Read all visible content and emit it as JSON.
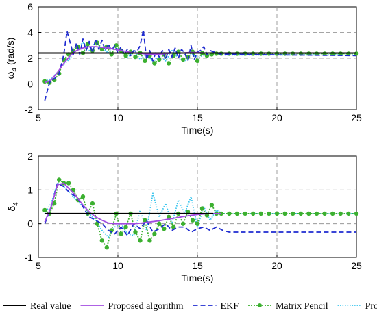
{
  "chart_data": [
    {
      "type": "line",
      "xlabel": "Time(s)",
      "ylabel": "ω4 (rad/s)",
      "ylabel_main": "ω",
      "ylabel_sub": "4",
      "ylabel_unit": " (rad/s)",
      "xlim": [
        5,
        25
      ],
      "ylim": [
        -2,
        6
      ],
      "xticks": [
        "5",
        "10",
        "15",
        "20",
        "25"
      ],
      "yticks": [
        "-2",
        "0",
        "2",
        "4",
        "6"
      ],
      "grid": true,
      "series": [
        {
          "name": "Real value",
          "x": [
            5,
            25
          ],
          "y": [
            2.4,
            2.4
          ]
        },
        {
          "name": "Proposed algorithm",
          "x": [
            5.4,
            5.8,
            6.2,
            6.6,
            7.0,
            7.4,
            7.8,
            8.2,
            8.6,
            9.0,
            9.4,
            9.8,
            10.2,
            10.6,
            11.0,
            11.5,
            12.0,
            12.5,
            13.0,
            13.5,
            14.0,
            14.5,
            15.0,
            15.5,
            16.0,
            16.5
          ],
          "y": [
            0.1,
            0.3,
            0.9,
            1.6,
            2.2,
            2.6,
            2.8,
            2.9,
            2.9,
            2.85,
            2.8,
            2.7,
            2.6,
            2.5,
            2.4,
            2.35,
            2.3,
            2.3,
            2.35,
            2.4,
            2.4,
            2.45,
            2.45,
            2.4,
            2.4,
            2.4
          ]
        },
        {
          "name": "EKF",
          "x": [
            5.4,
            5.7,
            6.0,
            6.3,
            6.6,
            6.8,
            7.0,
            7.2,
            7.4,
            7.6,
            7.8,
            8.0,
            8.2,
            8.4,
            8.6,
            8.8,
            9.0,
            9.2,
            9.4,
            9.6,
            9.8,
            10.0,
            10.2,
            10.4,
            10.6,
            10.8,
            11.0,
            11.2,
            11.4,
            11.6,
            11.8,
            12.0,
            12.2,
            12.4,
            12.6,
            12.8,
            13.0,
            13.2,
            13.4,
            13.6,
            13.8,
            14.0,
            14.2,
            14.4,
            14.6,
            14.8,
            15.0,
            15.2,
            15.4,
            15.6,
            15.8,
            16.0,
            16.5,
            17.0,
            25.0
          ],
          "y": [
            -1.3,
            0.1,
            0.4,
            0.8,
            2.3,
            4.1,
            3.2,
            2.3,
            3.2,
            2.3,
            3.5,
            2.6,
            3.3,
            2.4,
            3.5,
            2.7,
            3.4,
            2.6,
            3.1,
            2.6,
            3.0,
            2.4,
            2.9,
            2.3,
            2.7,
            2.2,
            2.6,
            2.5,
            3.0,
            4.2,
            1.9,
            2.6,
            1.8,
            2.5,
            2.1,
            2.6,
            1.9,
            2.7,
            2.1,
            2.8,
            2.0,
            2.7,
            2.4,
            1.8,
            3.0,
            1.9,
            2.5,
            2.6,
            2.9,
            2.3,
            2.6,
            2.5,
            2.3,
            2.3,
            2.2
          ]
        },
        {
          "name": "Matrix Pencil",
          "x": [
            5.4,
            5.7,
            6.0,
            6.3,
            6.6,
            6.9,
            7.2,
            7.5,
            7.8,
            8.1,
            8.4,
            8.7,
            9.0,
            9.3,
            9.6,
            9.9,
            10.2,
            10.5,
            10.8,
            11.1,
            11.4,
            11.7,
            12.0,
            12.3,
            12.6,
            12.9,
            13.2,
            13.5,
            13.8,
            14.1,
            14.4,
            14.7,
            15.0,
            15.3,
            15.6,
            15.9,
            16.2,
            16.5,
            17.0,
            17.5,
            18.0,
            18.5,
            19.0,
            19.5,
            20.0,
            20.5,
            21.0,
            21.5,
            22.0,
            22.5,
            23.0,
            23.5,
            24.0,
            24.5,
            25.0
          ],
          "y": [
            0.2,
            0.1,
            0.3,
            0.8,
            1.9,
            2.3,
            2.6,
            2.9,
            2.4,
            3.1,
            2.6,
            3.2,
            2.7,
            2.9,
            2.3,
            3.0,
            2.6,
            2.2,
            2.5,
            2.1,
            2.4,
            1.8,
            2.2,
            1.6,
            1.9,
            2.3,
            1.6,
            2.2,
            2.5,
            1.9,
            2.1,
            2.5,
            1.8,
            2.4,
            2.2,
            2.3,
            2.35,
            2.35,
            2.35,
            2.35,
            2.35,
            2.35,
            2.35,
            2.35,
            2.35,
            2.35,
            2.35,
            2.35,
            2.35,
            2.35,
            2.35,
            2.35,
            2.35,
            2.35,
            2.35
          ]
        },
        {
          "name": "Prony",
          "x": [
            5.4,
            5.8,
            6.2,
            6.6,
            7.0,
            7.4,
            7.8,
            8.2,
            8.6,
            9.0,
            9.4,
            9.8,
            10.2,
            10.6,
            11.0,
            11.4,
            11.8,
            12.2,
            12.6,
            13.0,
            13.4,
            13.8,
            14.2,
            14.6,
            15.0,
            15.4,
            15.8,
            16.2,
            16.6,
            17.0,
            25.0
          ],
          "y": [
            0.2,
            0.4,
            0.9,
            1.5,
            2.0,
            2.8,
            3.2,
            2.6,
            3.3,
            2.8,
            2.4,
            2.9,
            2.5,
            2.0,
            2.6,
            1.9,
            2.4,
            1.7,
            2.2,
            1.8,
            2.6,
            2.0,
            1.7,
            2.3,
            2.1,
            2.2,
            2.3,
            2.3,
            2.25,
            2.25,
            2.25
          ]
        }
      ]
    },
    {
      "type": "line",
      "xlabel": "Time(s)",
      "ylabel": "δ4",
      "ylabel_main": "δ",
      "ylabel_sub": "4",
      "ylabel_unit": "",
      "xlim": [
        5,
        25
      ],
      "ylim": [
        -1,
        2
      ],
      "xticks": [
        "5",
        "10",
        "15",
        "20",
        "25"
      ],
      "yticks": [
        "-1",
        "0",
        "1",
        "2"
      ],
      "grid": true,
      "series": [
        {
          "name": "Real value",
          "x": [
            5.4,
            16.0
          ],
          "y": [
            0.3,
            0.3
          ]
        },
        {
          "name": "Proposed algorithm",
          "x": [
            5.4,
            5.8,
            6.2,
            6.6,
            7.0,
            7.4,
            7.8,
            8.2,
            8.6,
            9.0,
            9.4,
            9.8,
            10.2,
            10.6,
            11.0,
            11.5,
            12.0,
            12.5,
            13.0,
            13.5,
            14.0,
            14.5,
            15.0,
            15.5,
            16.0,
            16.5
          ],
          "y": [
            0.05,
            0.5,
            1.15,
            1.2,
            1.0,
            0.8,
            0.55,
            0.35,
            0.2,
            0.1,
            0.02,
            0.0,
            0.0,
            0.0,
            0.0,
            0.02,
            0.05,
            0.08,
            0.12,
            0.16,
            0.2,
            0.24,
            0.27,
            0.29,
            0.3,
            0.3
          ]
        },
        {
          "name": "EKF",
          "x": [
            5.4,
            5.8,
            6.2,
            6.6,
            7.0,
            7.4,
            7.8,
            8.2,
            8.6,
            9.0,
            9.4,
            9.8,
            10.2,
            10.6,
            11.0,
            11.4,
            11.8,
            12.2,
            12.6,
            13.0,
            13.4,
            13.8,
            14.2,
            14.6,
            15.0,
            15.4,
            15.8,
            16.2,
            16.6,
            17.0,
            25.0
          ],
          "y": [
            0.0,
            0.5,
            1.2,
            1.1,
            0.9,
            0.8,
            0.5,
            0.2,
            0.1,
            0.0,
            -0.2,
            -0.3,
            -0.1,
            -0.35,
            0.0,
            -0.15,
            0.1,
            -0.25,
            -0.15,
            0.0,
            -0.2,
            -0.1,
            -0.1,
            -0.25,
            -0.15,
            -0.1,
            -0.2,
            -0.1,
            -0.2,
            -0.25,
            -0.25
          ]
        },
        {
          "name": "Matrix Pencil",
          "x": [
            5.4,
            5.7,
            6.0,
            6.3,
            6.6,
            6.9,
            7.2,
            7.5,
            7.8,
            8.1,
            8.4,
            8.7,
            9.0,
            9.3,
            9.6,
            9.9,
            10.2,
            10.5,
            10.8,
            11.1,
            11.4,
            11.7,
            12.0,
            12.3,
            12.6,
            12.9,
            13.2,
            13.5,
            13.8,
            14.1,
            14.4,
            14.7,
            15.0,
            15.3,
            15.6,
            15.9,
            16.2,
            16.5,
            17.0,
            17.5,
            18.0,
            18.5,
            19.0,
            19.5,
            20.0,
            20.5,
            21.0,
            21.5,
            22.0,
            22.5,
            23.0,
            23.5,
            24.0,
            24.5,
            25.0
          ],
          "y": [
            0.4,
            0.3,
            0.6,
            1.3,
            1.2,
            1.2,
            1.0,
            0.7,
            0.8,
            0.3,
            0.6,
            0.0,
            -0.5,
            -0.7,
            -0.2,
            0.3,
            -0.3,
            -0.1,
            0.3,
            -0.25,
            -0.5,
            0.1,
            -0.5,
            -0.3,
            0.0,
            -0.15,
            0.2,
            -0.1,
            0.3,
            0.0,
            0.35,
            0.1,
            0.0,
            0.45,
            0.25,
            0.55,
            0.3,
            0.3,
            0.3,
            0.3,
            0.3,
            0.3,
            0.3,
            0.3,
            0.3,
            0.3,
            0.3,
            0.3,
            0.3,
            0.3,
            0.3,
            0.3,
            0.3,
            0.3,
            0.3
          ]
        },
        {
          "name": "Prony",
          "x": [
            5.4,
            5.8,
            6.2,
            6.6,
            7.0,
            7.4,
            7.8,
            8.2,
            8.6,
            9.0,
            9.4,
            9.8,
            10.2,
            10.6,
            11.0,
            11.4,
            11.8,
            12.2,
            12.6,
            13.0,
            13.4,
            13.8,
            14.2,
            14.6,
            15.0,
            15.4,
            15.8,
            16.2,
            16.6,
            17.0,
            25.0
          ],
          "y": [
            0.3,
            0.6,
            1.2,
            1.1,
            0.9,
            0.7,
            0.5,
            0.3,
            0.1,
            -0.2,
            -0.4,
            -0.1,
            0.0,
            -0.3,
            -0.35,
            0.4,
            -0.2,
            0.9,
            0.2,
            0.6,
            0.0,
            0.7,
            0.3,
            0.8,
            -0.1,
            0.5,
            0.1,
            0.4,
            0.3,
            0.3,
            0.3
          ]
        }
      ]
    }
  ],
  "legend": {
    "position": "bottom",
    "items": [
      {
        "label": "Real value",
        "color": "#000000"
      },
      {
        "label": "Proposed algorithm",
        "color": "#a24be0"
      },
      {
        "label": "EKF",
        "color": "#1f2bd0"
      },
      {
        "label": "Matrix Pencil",
        "color": "#3cb030"
      },
      {
        "label": "Prony",
        "color": "#35c4ee"
      }
    ]
  }
}
